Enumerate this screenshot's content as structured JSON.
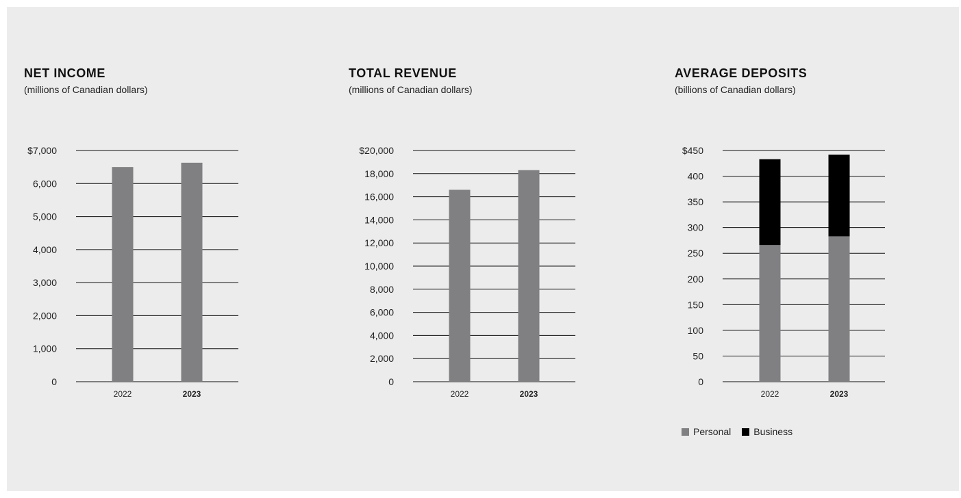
{
  "colors": {
    "background": "#ececec",
    "bar": "#808083",
    "business": "#000000",
    "gridline": "#111111",
    "text": "#222222"
  },
  "legend": {
    "personal": "Personal",
    "business": "Business"
  },
  "chart_data": [
    {
      "type": "bar",
      "title": "NET INCOME",
      "subtitle": "(millions of Canadian dollars)",
      "categories": [
        "2022",
        "2023"
      ],
      "bold_categories": [
        "2023"
      ],
      "values": [
        6500,
        6630
      ],
      "ylim": [
        0,
        7000
      ],
      "ticks": [
        0,
        1000,
        2000,
        3000,
        4000,
        5000,
        6000,
        7000
      ],
      "tick_labels": [
        "0",
        "1,000",
        "2,000",
        "3,000",
        "4,000",
        "5,000",
        "6,000",
        "$7,000"
      ],
      "grid": true
    },
    {
      "type": "bar",
      "title": "TOTAL REVENUE",
      "subtitle": "(millions of Canadian dollars)",
      "categories": [
        "2022",
        "2023"
      ],
      "bold_categories": [
        "2023"
      ],
      "values": [
        16600,
        18300
      ],
      "ylim": [
        0,
        20000
      ],
      "ticks": [
        0,
        2000,
        4000,
        6000,
        8000,
        10000,
        12000,
        14000,
        16000,
        18000,
        20000
      ],
      "tick_labels": [
        "0",
        "2,000",
        "4,000",
        "6,000",
        "8,000",
        "10,000",
        "12,000",
        "14,000",
        "16,000",
        "18,000",
        "$20,000"
      ],
      "grid": true
    },
    {
      "type": "bar",
      "stacked": true,
      "title": "AVERAGE DEPOSITS",
      "subtitle": "(billions of Canadian dollars)",
      "categories": [
        "2022",
        "2023"
      ],
      "bold_categories": [
        "2023"
      ],
      "series": [
        {
          "name": "Personal",
          "values": [
            266,
            283
          ]
        },
        {
          "name": "Business",
          "values": [
            167,
            159
          ]
        }
      ],
      "ylim": [
        0,
        450
      ],
      "ticks": [
        0,
        50,
        100,
        150,
        200,
        250,
        300,
        350,
        400,
        450
      ],
      "tick_labels": [
        "0",
        "50",
        "100",
        "150",
        "200",
        "250",
        "300",
        "350",
        "400",
        "$450"
      ],
      "grid": true,
      "legend_position": "bottom-left"
    }
  ]
}
